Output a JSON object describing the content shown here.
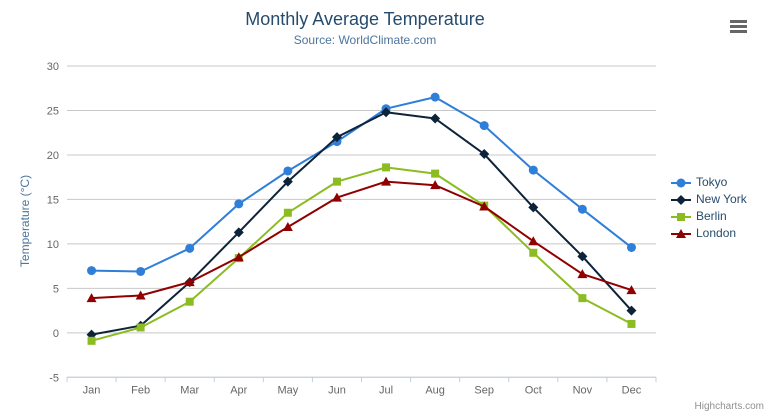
{
  "credits": "Highcharts.com",
  "context_menu": {
    "icon": "hamburger-icon"
  },
  "chart_data": {
    "type": "line",
    "title": "Monthly Average Temperature",
    "subtitle": "Source: WorldClimate.com",
    "categories": [
      "Jan",
      "Feb",
      "Mar",
      "Apr",
      "May",
      "Jun",
      "Jul",
      "Aug",
      "Sep",
      "Oct",
      "Nov",
      "Dec"
    ],
    "series": [
      {
        "name": "Tokyo",
        "color": "#2f7ed8",
        "marker": "circle",
        "values": [
          7.0,
          6.9,
          9.5,
          14.5,
          18.2,
          21.5,
          25.2,
          26.5,
          23.3,
          18.3,
          13.9,
          9.6
        ]
      },
      {
        "name": "New York",
        "color": "#0d233a",
        "marker": "diamond",
        "values": [
          -0.2,
          0.8,
          5.7,
          11.3,
          17.0,
          22.0,
          24.8,
          24.1,
          20.1,
          14.1,
          8.6,
          2.5
        ]
      },
      {
        "name": "Berlin",
        "color": "#8bbc21",
        "marker": "square",
        "values": [
          -0.9,
          0.6,
          3.5,
          8.4,
          13.5,
          17.0,
          18.6,
          17.9,
          14.3,
          9.0,
          3.9,
          1.0
        ]
      },
      {
        "name": "London",
        "color": "#910000",
        "marker": "triangle",
        "values": [
          3.9,
          4.2,
          5.7,
          8.5,
          11.9,
          15.2,
          17.0,
          16.6,
          14.2,
          10.3,
          6.6,
          4.8
        ]
      }
    ],
    "xlabel": "",
    "ylabel": "Temperature (°C)",
    "ylim": [
      -5,
      30
    ],
    "ytick_step": 5,
    "grid": true,
    "legend_position": "right",
    "gridline_color": "#C8C8C8",
    "axis_line_color": "#C0D0E0",
    "label_color": "#666666"
  }
}
